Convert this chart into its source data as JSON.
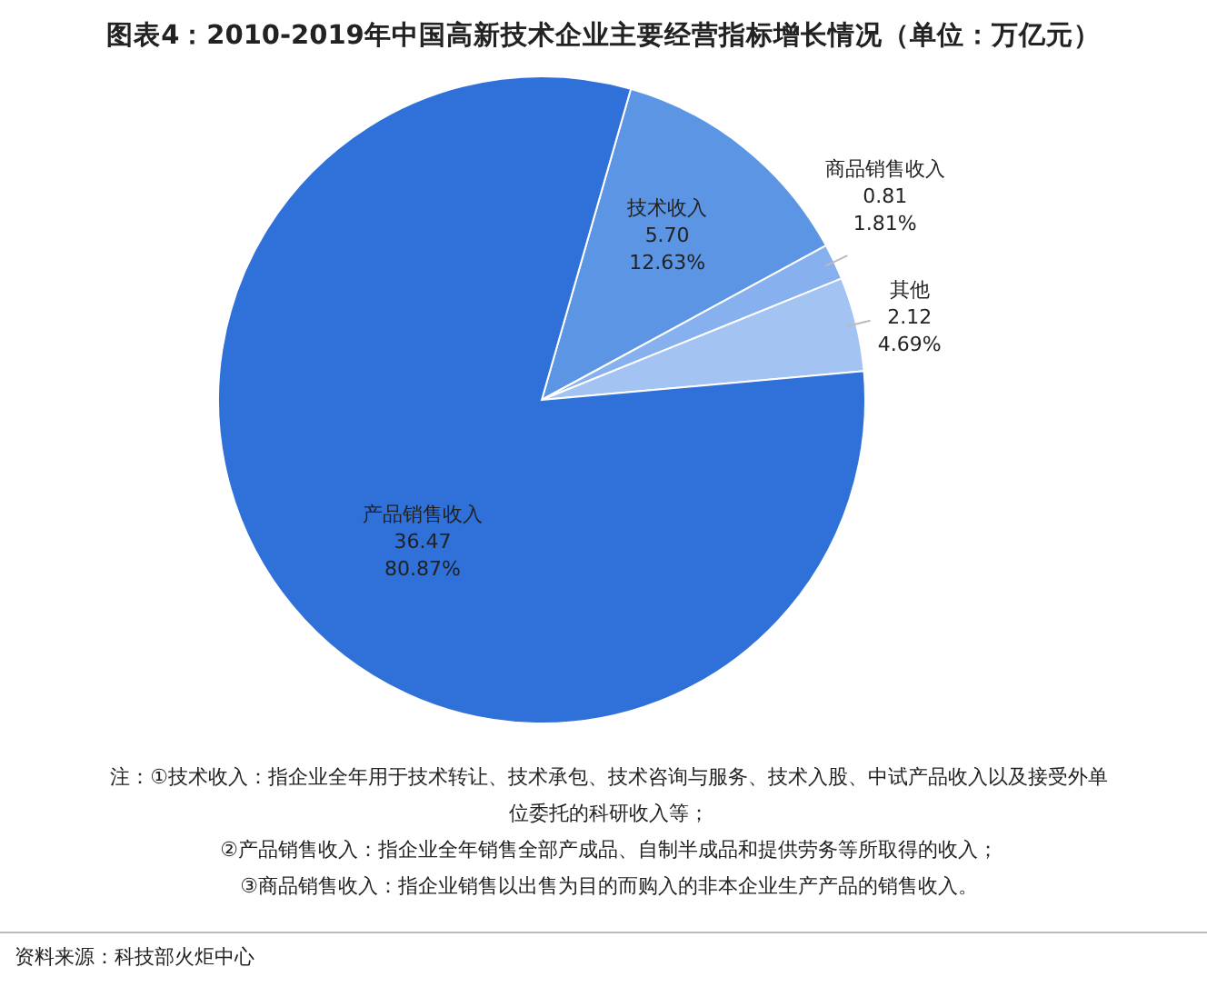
{
  "chart_data": {
    "type": "pie",
    "title": "图表4：2010-2019年中国高新技术企业主要经营指标增长情况（单位：万亿元）",
    "categories": [
      "技术收入",
      "商品销售收入",
      "其他",
      "产品销售收入"
    ],
    "values": [
      5.7,
      0.81,
      2.12,
      36.47
    ],
    "value_labels": [
      "5.70\n12.63%",
      "0.81\n1.81%",
      "2.12\n4.69%",
      "36.47\n80.87%"
    ],
    "colors": [
      "#5b95e4",
      "#86b1ee",
      "#a3c4f3",
      "#2f70d9"
    ],
    "annotations": [
      "注：①技术收入：指企业全年用于技术转让、技术承包、技术咨询与服务、技术入股、中试产品收入以及接受外单位委托的科研收入等；",
      "②产品销售收入：指企业全年销售全部产成品、自制半成品和提供劳务等所取得的收入；",
      "③商品销售收入：指企业销售以出售为目的而购入的非本企业生产产品的销售收入。",
      "资料来源：科技部火炬中心"
    ]
  }
}
